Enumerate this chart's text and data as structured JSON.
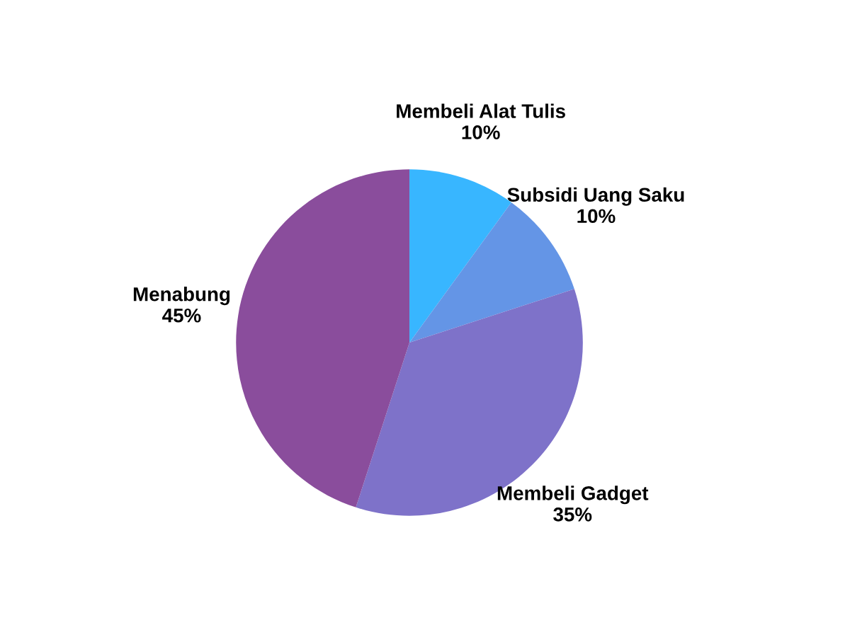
{
  "chart_data": {
    "type": "pie",
    "categories": [
      "Membeli Alat Tulis",
      "Subsidi Uang Saku",
      "Membeli Gadget",
      "Menabung"
    ],
    "values": [
      10,
      10,
      35,
      45
    ],
    "value_labels": [
      "10%",
      "10%",
      "35%",
      "45%"
    ],
    "colors": [
      "#38b6ff",
      "#6495e6",
      "#7e72c9",
      "#8a4d9c"
    ],
    "legend": false
  }
}
